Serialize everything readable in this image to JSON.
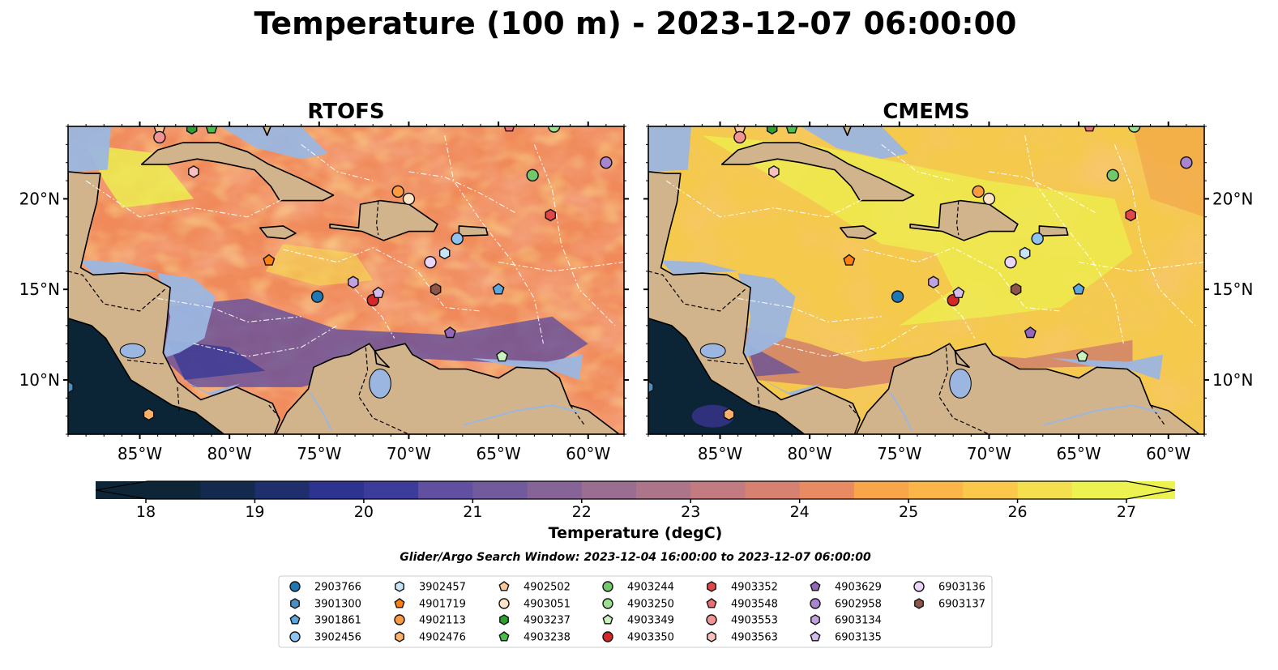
{
  "figure": {
    "title": "Temperature (100 m) - 2023-12-07 06:00:00",
    "search_window": "Glider/Argo Search Window: 2023-12-04 16:00:00 to 2023-12-07 06:00:00"
  },
  "panels": [
    {
      "title": "RTOFS",
      "style": "rtofs"
    },
    {
      "title": "CMEMS",
      "style": "cmems"
    }
  ],
  "map": {
    "lon_range": [
      -89,
      -58
    ],
    "lat_range": [
      7,
      24
    ],
    "x_ticks": [
      "85°W",
      "80°W",
      "75°W",
      "70°W",
      "65°W",
      "60°W"
    ],
    "x_tick_values": [
      -85,
      -80,
      -75,
      -70,
      -65,
      -60
    ],
    "y_ticks": [
      "20°N",
      "15°N",
      "10°N"
    ],
    "y_tick_values": [
      20,
      15,
      10
    ],
    "land_color": "#d2b48c",
    "shelf_color": "#9bb6e0",
    "deep_color": "#0b2436"
  },
  "colorbar": {
    "label": "Temperature (degC)",
    "ticks": [
      "18",
      "19",
      "20",
      "21",
      "22",
      "23",
      "24",
      "25",
      "26",
      "27"
    ],
    "min": 18,
    "max": 27,
    "colors": [
      "#0d2536",
      "#142a4c",
      "#1f2f6e",
      "#2f3390",
      "#3c3c9a",
      "#4d44a0",
      "#60509f",
      "#725b9c",
      "#866497",
      "#996e91",
      "#ad758a",
      "#c27b80",
      "#d78271",
      "#e98b62",
      "#f69851",
      "#f9a64a",
      "#fbb548",
      "#fbc84b",
      "#f4df4f",
      "#ecf250"
    ]
  },
  "floats": [
    {
      "id": "2903766",
      "marker": "circle",
      "color": "#1f77b4",
      "lon": -75.1,
      "lat": 14.6
    },
    {
      "id": "3901300",
      "marker": "hexagon",
      "color": "#4a8fc4",
      "lon": -89.0,
      "lat": 9.6
    },
    {
      "id": "3901861",
      "marker": "pentagon",
      "color": "#5ca7e0",
      "lon": -65.0,
      "lat": 15.0
    },
    {
      "id": "3902456",
      "marker": "circle",
      "color": "#8ec3f0",
      "lon": -67.3,
      "lat": 17.8
    },
    {
      "id": "3902457",
      "marker": "hexagon",
      "color": "#c8e4f8",
      "lon": -68.0,
      "lat": 17.0
    },
    {
      "id": "4901719",
      "marker": "pentagon",
      "color": "#ff7f0e",
      "lon": -77.8,
      "lat": 16.6
    },
    {
      "id": "4902113",
      "marker": "circle",
      "color": "#fd9a40",
      "lon": -70.6,
      "lat": 20.4
    },
    {
      "id": "4902476",
      "marker": "hexagon",
      "color": "#fdb26b",
      "lon": -84.5,
      "lat": 8.1
    },
    {
      "id": "4902502",
      "marker": "pentagon",
      "color": "#fdc998",
      "lon": -83.9,
      "lat": 23.9
    },
    {
      "id": "4903051",
      "marker": "circle",
      "color": "#fde3c8",
      "lon": -70.0,
      "lat": 20.0
    },
    {
      "id": "4903237",
      "marker": "hexagon",
      "color": "#2ca02c",
      "lon": -82.1,
      "lat": 23.9
    },
    {
      "id": "4903238",
      "marker": "pentagon",
      "color": "#4bbf4b",
      "lon": -81.0,
      "lat": 23.9
    },
    {
      "id": "4903244",
      "marker": "circle",
      "color": "#72c96a",
      "lon": -63.1,
      "lat": 21.3
    },
    {
      "id": "4903250",
      "marker": "circle",
      "color": "#9be08f",
      "lon": -61.9,
      "lat": 24.0
    },
    {
      "id": "4903349",
      "marker": "pentagon",
      "color": "#c9f2c0",
      "lon": -64.8,
      "lat": 11.3
    },
    {
      "id": "4903350",
      "marker": "circle",
      "color": "#d62728",
      "lon": -72.0,
      "lat": 14.4
    },
    {
      "id": "4903352",
      "marker": "hexagon",
      "color": "#e0464a",
      "lon": -62.1,
      "lat": 19.1
    },
    {
      "id": "4903548",
      "marker": "pentagon",
      "color": "#eb6f72",
      "lon": -64.4,
      "lat": 24.0
    },
    {
      "id": "4903553",
      "marker": "circle",
      "color": "#f29494",
      "lon": -83.9,
      "lat": 23.4
    },
    {
      "id": "4903563",
      "marker": "hexagon",
      "color": "#f9c0c0",
      "lon": -82.0,
      "lat": 21.5
    },
    {
      "id": "4903629",
      "marker": "pentagon",
      "color": "#9467bd",
      "lon": -67.7,
      "lat": 12.6
    },
    {
      "id": "6902958",
      "marker": "circle",
      "color": "#a984d1",
      "lon": -59.0,
      "lat": 22.0
    },
    {
      "id": "6903134",
      "marker": "hexagon",
      "color": "#c0a3e0",
      "lon": -73.1,
      "lat": 15.4
    },
    {
      "id": "6903135",
      "marker": "pentagon",
      "color": "#d3bdec",
      "lon": -71.7,
      "lat": 14.8
    },
    {
      "id": "6903136",
      "marker": "circle",
      "color": "#ead6f8",
      "lon": -68.8,
      "lat": 16.5
    },
    {
      "id": "6903137",
      "marker": "hexagon",
      "color": "#8c564b",
      "lon": -68.5,
      "lat": 15.0
    }
  ]
}
